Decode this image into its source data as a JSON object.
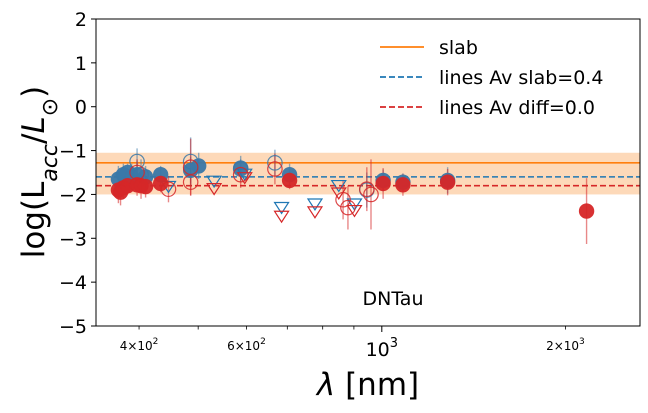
{
  "chart_data": {
    "type": "scatter",
    "x_scale": "log",
    "xlim": [
      340,
      2650
    ],
    "ylim": [
      -5,
      2
    ],
    "xlabel": "λ [nm]",
    "ylabel": "log(L_acc/L_⊙)",
    "y_ticks": [
      {
        "value": 2,
        "label": "2"
      },
      {
        "value": 1,
        "label": "1"
      },
      {
        "value": 0,
        "label": "0"
      },
      {
        "value": -1,
        "label": "−1"
      },
      {
        "value": -2,
        "label": "−2"
      },
      {
        "value": -3,
        "label": "−3"
      },
      {
        "value": -4,
        "label": "−4"
      },
      {
        "value": -5,
        "label": "−5"
      }
    ],
    "x_major_ticks": [
      {
        "value": 1000,
        "label": "10",
        "exponent": "3"
      }
    ],
    "x_minor_ticks": [
      {
        "value": 400,
        "label": "4×10",
        "exponent": "2"
      },
      {
        "value": 600,
        "label": "6×10",
        "exponent": "2"
      },
      {
        "value": 2000,
        "label": "2×10",
        "exponent": "3"
      }
    ],
    "x_minor_unlabeled": [
      300,
      500,
      700,
      800,
      900
    ],
    "annotation": "DNTau",
    "slab": {
      "value": -1.28,
      "band": [
        -1.05,
        -2.0
      ],
      "color": "#ff7f0e",
      "band_color": "#fdd9b9"
    },
    "lines_slab": {
      "value": -1.6,
      "color": "#1f77b4"
    },
    "lines_diff": {
      "value": -1.8,
      "color": "#d62728"
    },
    "legend": [
      {
        "label": "slab",
        "style": "solid",
        "color": "#ff7f0e"
      },
      {
        "label": "lines Av slab=0.4",
        "style": "dashed",
        "color": "#1f77b4"
      },
      {
        "label": "lines Av diff=0.0",
        "style": "dashed",
        "color": "#d62728"
      }
    ],
    "series": [
      {
        "name": "lines Av slab=0.4 (filled)",
        "marker": "filled-circle",
        "color": "#3a78a8",
        "points": [
          {
            "x": 370,
            "y": -1.65,
            "err": 0.3
          },
          {
            "x": 377,
            "y": -1.55,
            "err": 0.25
          },
          {
            "x": 383,
            "y": -1.5,
            "err": 0.2
          },
          {
            "x": 389,
            "y": -1.6,
            "err": 0.3
          },
          {
            "x": 397,
            "y": -1.55,
            "err": 0.3
          },
          {
            "x": 410,
            "y": -1.6,
            "err": 0.25
          },
          {
            "x": 434,
            "y": -1.55,
            "err": 0.2
          },
          {
            "x": 486,
            "y": -1.45,
            "err": 0.3
          },
          {
            "x": 501,
            "y": -1.35,
            "err": 0.3
          },
          {
            "x": 587,
            "y": -1.4,
            "err": 0.2
          },
          {
            "x": 706,
            "y": -1.55,
            "err": 0.25
          },
          {
            "x": 1005,
            "y": -1.68,
            "err": 0.25
          },
          {
            "x": 1083,
            "y": -1.72,
            "err": 0.2
          },
          {
            "x": 1282,
            "y": -1.68,
            "err": 0.3
          }
        ]
      },
      {
        "name": "lines Av slab=0.4 (open)",
        "marker": "open-circle",
        "color": "#3a78a8",
        "points": [
          {
            "x": 397,
            "y": -1.25,
            "err": 0.3
          },
          {
            "x": 403,
            "y": -1.55,
            "err": 0.35
          },
          {
            "x": 486,
            "y": -1.25,
            "err": 0.55
          },
          {
            "x": 587,
            "y": -1.42,
            "err": 0.3
          },
          {
            "x": 668,
            "y": -1.28,
            "err": 0.3
          },
          {
            "x": 945,
            "y": -1.9,
            "err": 0.4
          }
        ]
      },
      {
        "name": "lines Av slab=0.4 (triangles)",
        "marker": "open-triangle-down",
        "color": "#1f77b4",
        "points": [
          {
            "x": 447,
            "y": -1.8
          },
          {
            "x": 531,
            "y": -1.68
          },
          {
            "x": 596,
            "y": -1.52
          },
          {
            "x": 685,
            "y": -2.28
          },
          {
            "x": 777,
            "y": -2.2
          },
          {
            "x": 850,
            "y": -1.78
          },
          {
            "x": 902,
            "y": -2.2
          }
        ]
      },
      {
        "name": "lines Av diff=0.0 (filled)",
        "marker": "filled-circle",
        "color": "#d62728",
        "points": [
          {
            "x": 370,
            "y": -1.9,
            "err": 0.3
          },
          {
            "x": 373,
            "y": -1.95,
            "err": 0.3
          },
          {
            "x": 377,
            "y": -1.85,
            "err": 0.25
          },
          {
            "x": 383,
            "y": -1.8,
            "err": 0.2
          },
          {
            "x": 397,
            "y": -1.78,
            "err": 0.25
          },
          {
            "x": 403,
            "y": -1.8,
            "err": 0.3
          },
          {
            "x": 410,
            "y": -1.82,
            "err": 0.25
          },
          {
            "x": 434,
            "y": -1.75,
            "err": 0.2
          },
          {
            "x": 706,
            "y": -1.68,
            "err": 0.2
          },
          {
            "x": 1005,
            "y": -1.75,
            "err": 0.35
          },
          {
            "x": 1083,
            "y": -1.78,
            "err": 0.25
          },
          {
            "x": 1282,
            "y": -1.72,
            "err": 0.3
          },
          {
            "x": 2166,
            "y": -2.38,
            "err": 0.75
          }
        ]
      },
      {
        "name": "lines Av diff=0.0 (open)",
        "marker": "open-circle",
        "color": "#d62728",
        "points": [
          {
            "x": 397,
            "y": -1.5,
            "err": 0.3
          },
          {
            "x": 447,
            "y": -1.88,
            "err": 0.3
          },
          {
            "x": 486,
            "y": -1.38,
            "err": 0.65
          },
          {
            "x": 486,
            "y": -1.72,
            "err": 0.3
          },
          {
            "x": 587,
            "y": -1.55,
            "err": 0.3
          },
          {
            "x": 668,
            "y": -1.42,
            "err": 0.35
          },
          {
            "x": 864,
            "y": -2.12,
            "err": 0.45
          },
          {
            "x": 880,
            "y": -2.3,
            "err": 0.5
          },
          {
            "x": 945,
            "y": -1.88,
            "err": 0.5
          },
          {
            "x": 960,
            "y": -2.0,
            "err": 0.8
          }
        ]
      },
      {
        "name": "lines Av diff=0.0 (triangles)",
        "marker": "open-triangle-down",
        "color": "#d62728",
        "points": [
          {
            "x": 531,
            "y": -1.85
          },
          {
            "x": 596,
            "y": -1.6
          },
          {
            "x": 685,
            "y": -2.48
          },
          {
            "x": 777,
            "y": -2.38
          },
          {
            "x": 850,
            "y": -1.95
          },
          {
            "x": 902,
            "y": -2.35
          }
        ]
      }
    ]
  }
}
